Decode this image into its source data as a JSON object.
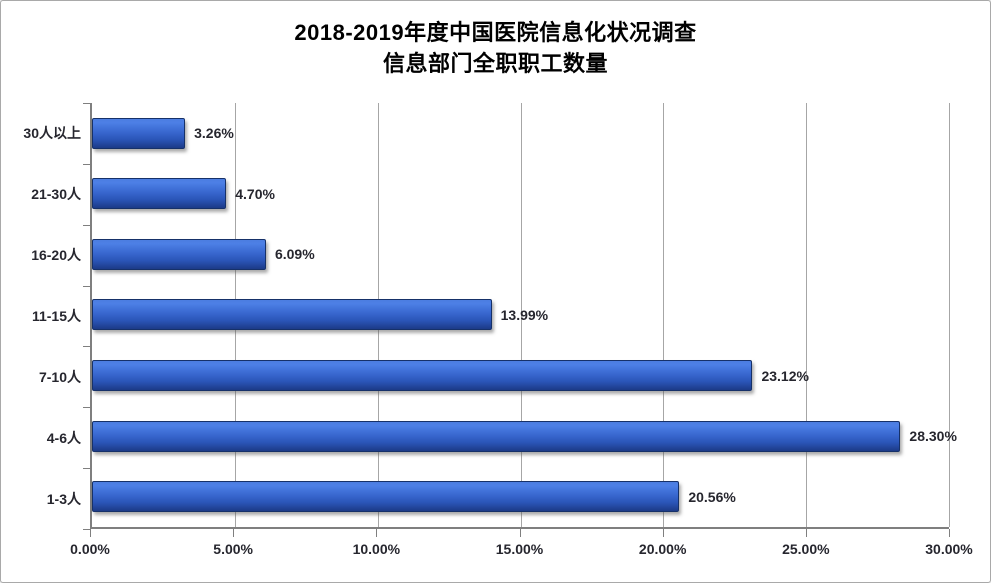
{
  "title": {
    "line1": "2018-2019年度中国医院信息化状况调查",
    "line2": "信息部门全职职工数量"
  },
  "chart_data": {
    "type": "bar",
    "orientation": "horizontal",
    "title": "2018-2019年度中国医院信息化状况调查 信息部门全职职工数量",
    "categories": [
      "30人以上",
      "21-30人",
      "16-20人",
      "11-15人",
      "7-10人",
      "4-6人",
      "1-3人"
    ],
    "values": [
      3.26,
      4.7,
      6.09,
      13.99,
      23.12,
      28.3,
      20.56
    ],
    "data_labels": [
      "3.26%",
      "4.70%",
      "6.09%",
      "13.99%",
      "23.12%",
      "28.30%",
      "20.56%"
    ],
    "x_tick_labels": [
      "0.00%",
      "5.00%",
      "10.00%",
      "15.00%",
      "20.00%",
      "25.00%",
      "30.00%"
    ],
    "xlim": [
      0,
      30
    ],
    "x_tick_step": 5,
    "grid": true,
    "legend": false,
    "colors": {
      "bar_top": "#4c7de0",
      "bar_mid": "#3765cd",
      "bar_bottom": "#1c3a87",
      "bar_border": "#163169",
      "gridline": "#a6a6a6",
      "axis": "#7f7f7f",
      "label_text": "#26262e",
      "title_text": "#000000",
      "background": "#ffffff",
      "frame_border": "#a9a9a9"
    }
  }
}
